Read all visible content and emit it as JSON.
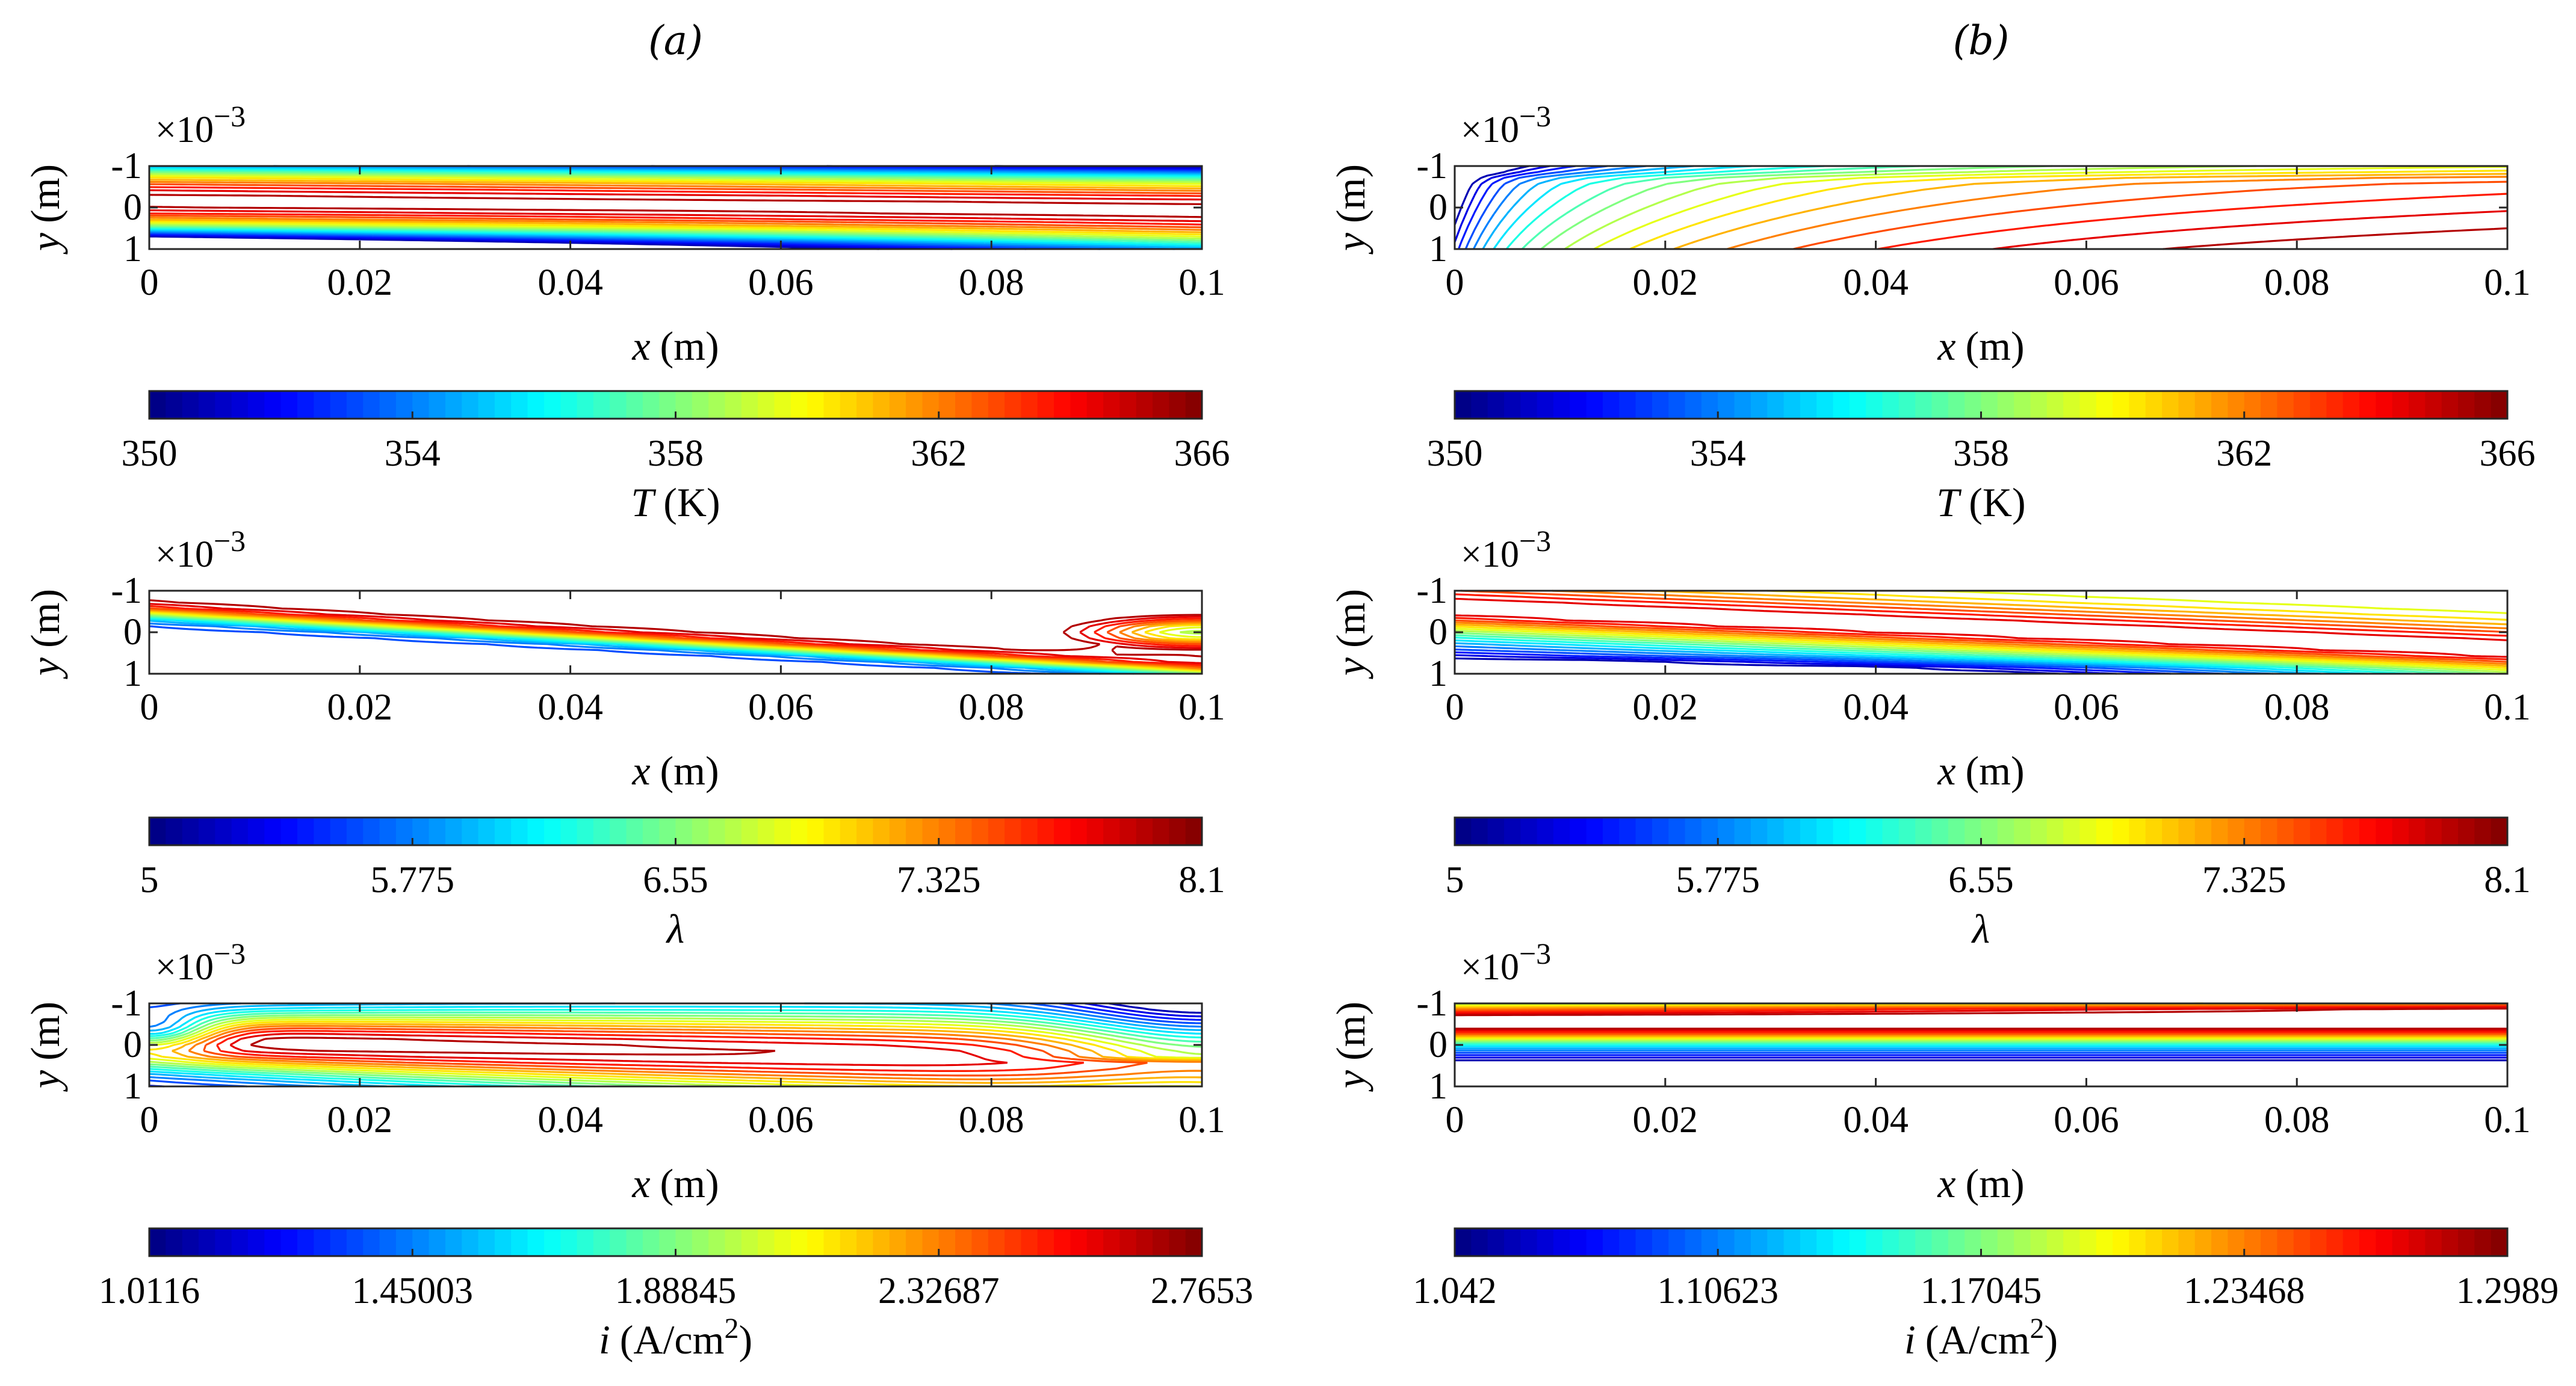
{
  "chart_data": {
    "type": "contour",
    "columns": [
      {
        "id": "a",
        "title": "(a)"
      },
      {
        "id": "b",
        "title": "(b)"
      }
    ],
    "plot_axes": {
      "x": {
        "label_var": "x",
        "label_unit": "(m)",
        "range": [
          0,
          0.1
        ],
        "ticks": [
          0,
          0.02,
          0.04,
          0.06,
          0.08,
          0.1
        ],
        "tick_labels": [
          "0",
          "0.02",
          "0.04",
          "0.06",
          "0.08",
          "0.1"
        ]
      },
      "y": {
        "label_var": "y",
        "label_unit": "(m)",
        "range": [
          -1,
          1
        ],
        "reversed": true,
        "ticks": [
          -1,
          0,
          1
        ],
        "tick_labels": [
          "-1",
          "0",
          "1"
        ],
        "exponent_base": "×10",
        "exponent_power": "−3"
      }
    },
    "rows": [
      {
        "field": "T",
        "colorbar": {
          "label_var": "T",
          "label_unit": "(K)",
          "min": 350,
          "max": 366,
          "ticks": [
            350,
            354,
            358,
            362,
            366
          ],
          "tick_labels": [
            "350",
            "354",
            "358",
            "362",
            "366"
          ]
        }
      },
      {
        "field": "lambda",
        "colorbar": {
          "label_var": "λ",
          "label_unit": "",
          "min": 5,
          "max": 8.1,
          "ticks": [
            5,
            5.775,
            6.55,
            7.325,
            8.1
          ],
          "tick_labels": [
            "5",
            "5.775",
            "6.55",
            "7.325",
            "8.1"
          ]
        }
      },
      {
        "field": "i",
        "colorbar": {
          "label_var": "i",
          "label_unit": "(A/cm",
          "label_sup": "2",
          "label_close": ")",
          "tick_labels_a": [
            "1.0116",
            "1.45003",
            "1.88845",
            "2.32687",
            "2.7653"
          ],
          "tick_labels_b": [
            "1.042",
            "1.10623",
            "1.17045",
            "1.23468",
            "1.2989"
          ]
        }
      }
    ],
    "colormap": "jet",
    "contour_levels": 20
  }
}
